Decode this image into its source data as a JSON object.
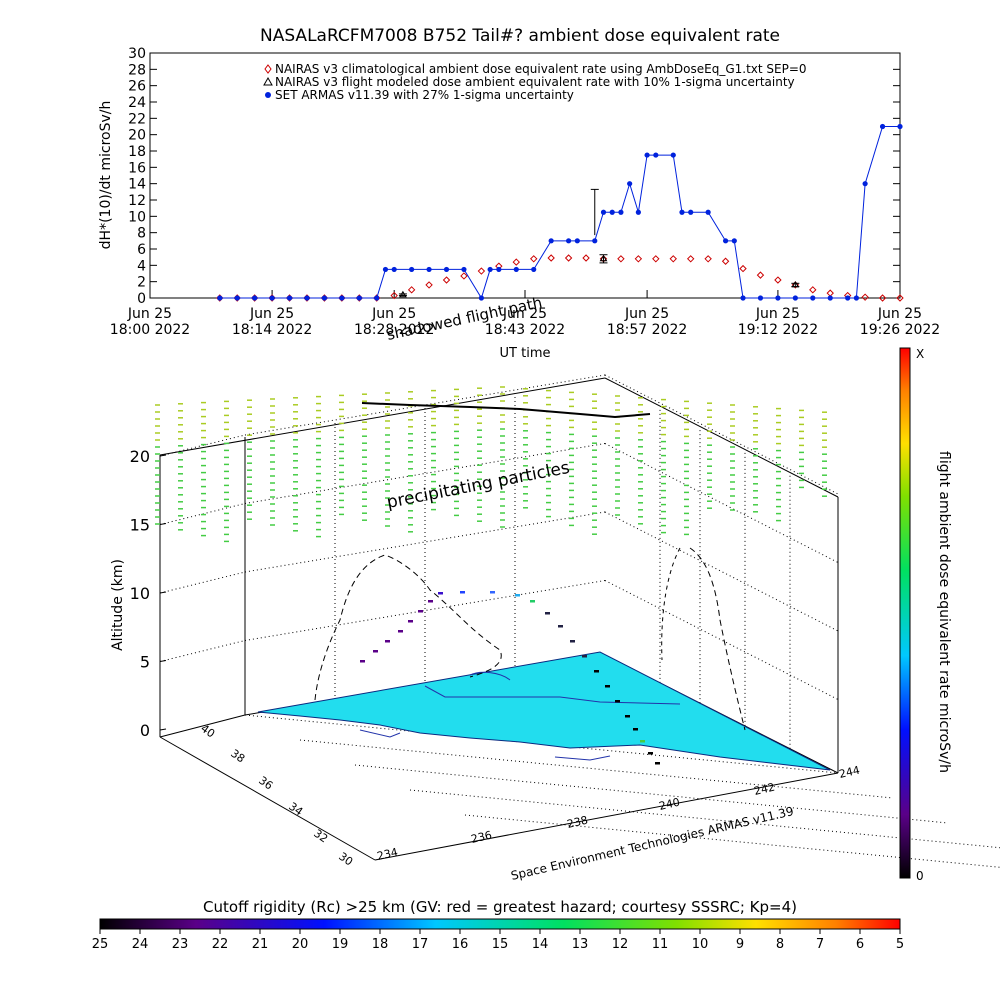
{
  "chart_data": [
    {
      "type": "line",
      "title": "NASALaRCFM7008  B752 Tail#? ambient dose equivalent rate",
      "ylabel": "dH*(10)/dt microSv/h",
      "xlabel": "UT time",
      "ylim": [
        0,
        30
      ],
      "yticks": [
        "0",
        "2",
        "4",
        "6",
        "8",
        "10",
        "12",
        "14",
        "16",
        "18",
        "20",
        "22",
        "24",
        "26",
        "28",
        "30"
      ],
      "xlim": [
        "18:00",
        "19:26"
      ],
      "xticks": [
        {
          "date": "Jun 25",
          "time": "18:00 2022",
          "t": "18:00"
        },
        {
          "date": "Jun 25",
          "time": "18:14 2022",
          "t": "18:14"
        },
        {
          "date": "Jun 25",
          "time": "18:28 2022",
          "t": "18:28"
        },
        {
          "date": "Jun 25",
          "time": "18:43 2022",
          "t": "18:43"
        },
        {
          "date": "Jun 25",
          "time": "18:57 2022",
          "t": "18:57"
        },
        {
          "date": "Jun 25",
          "time": "19:12 2022",
          "t": "19:12"
        },
        {
          "date": "Jun 25",
          "time": "19:26 2022",
          "t": "19:26"
        }
      ],
      "legend": [
        {
          "marker": "diamond",
          "color": "#cc0000",
          "label": "NAIRAS v3 climatological ambient dose equivalent rate using AmbDoseEq_G1.txt SEP=0"
        },
        {
          "marker": "triangle",
          "color": "#000000",
          "label": "NAIRAS v3 flight modeled dose ambient equivalent rate with 10% 1-sigma uncertainty"
        },
        {
          "marker": "dot",
          "color": "#0022dd",
          "label": "SET ARMAS v11.39 with 27% 1-sigma uncertainty"
        }
      ],
      "series": [
        {
          "marker": "diamond",
          "color": "#cc0000",
          "x": [
            "18:08",
            "18:10",
            "18:12",
            "18:14",
            "18:16",
            "18:18",
            "18:20",
            "18:22",
            "18:24",
            "18:26",
            "18:28",
            "18:30",
            "18:32",
            "18:34",
            "18:36",
            "18:38",
            "18:40",
            "18:42",
            "18:44",
            "18:46",
            "18:48",
            "18:50",
            "18:52",
            "18:54",
            "18:56",
            "18:58",
            "19:00",
            "19:02",
            "19:04",
            "19:06",
            "19:08",
            "19:10",
            "19:12",
            "19:14",
            "19:16",
            "19:18",
            "19:20",
            "19:22",
            "19:24",
            "19:26"
          ],
          "y": [
            0,
            0,
            0,
            0,
            0,
            0,
            0,
            0,
            0,
            0,
            0.3,
            1.0,
            1.6,
            2.2,
            2.7,
            3.3,
            3.9,
            4.4,
            4.8,
            4.9,
            4.9,
            4.9,
            4.8,
            4.8,
            4.8,
            4.8,
            4.8,
            4.8,
            4.8,
            4.5,
            3.6,
            2.8,
            2.2,
            1.6,
            1.0,
            0.6,
            0.3,
            0.1,
            0,
            0
          ]
        },
        {
          "marker": "triangle",
          "color": "#000000",
          "x": [
            "18:29",
            "18:52",
            "19:14"
          ],
          "y": [
            0.4,
            4.8,
            1.6
          ],
          "err": [
            0.1,
            0.5,
            0.2
          ]
        },
        {
          "marker": "dot",
          "color": "#0022dd",
          "x": [
            "18:08",
            "18:10",
            "18:12",
            "18:14",
            "18:16",
            "18:18",
            "18:20",
            "18:22",
            "18:24",
            "18:26",
            "18:27",
            "18:28",
            "18:30",
            "18:32",
            "18:34",
            "18:36",
            "18:38",
            "18:39",
            "18:40",
            "18:42",
            "18:44",
            "18:46",
            "18:48",
            "18:49",
            "18:51",
            "18:52",
            "18:53",
            "18:54",
            "18:55",
            "18:56",
            "18:57",
            "18:58",
            "19:00",
            "19:01",
            "19:02",
            "19:04",
            "19:06",
            "19:07",
            "19:08",
            "19:10",
            "19:12",
            "19:14",
            "19:16",
            "19:18",
            "19:20",
            "19:21",
            "19:22",
            "19:24",
            "19:26"
          ],
          "y": [
            0,
            0,
            0,
            0,
            0,
            0,
            0,
            0,
            0,
            0,
            3.5,
            3.5,
            3.5,
            3.5,
            3.5,
            3.5,
            0,
            3.5,
            3.5,
            3.5,
            3.5,
            7,
            7,
            7,
            7,
            10.5,
            10.5,
            10.5,
            14,
            10.5,
            17.5,
            17.5,
            17.5,
            10.5,
            10.5,
            10.5,
            7,
            7,
            0,
            0,
            0,
            0,
            0,
            0,
            0,
            0,
            14,
            21,
            21
          ],
          "err_at": {
            "x": "18:51",
            "y": 10.5,
            "err": 2.8
          }
        }
      ]
    },
    {
      "type": "scatter",
      "subtype": "3d-flight-path",
      "zlabel": "Altitude (km)",
      "zticks": [
        "0",
        "5",
        "10",
        "15",
        "20"
      ],
      "latticks": [
        "30",
        "32",
        "34",
        "36",
        "38",
        "40"
      ],
      "lonticks": [
        "234",
        "236",
        "238",
        "240",
        "242",
        "244"
      ],
      "annotations": [
        "shadowed flight path",
        "precipitating particles"
      ],
      "credit": "Space Environment Technologies ARMAS v11.39",
      "colorbar_label": "flight ambient dose equivalent rate microSv/h",
      "colorbar_ticks": [
        "0",
        "X"
      ],
      "rigidity_label": "Cutoff rigidity (Rc) >25 km (GV: red = greatest hazard; courtesy SSSRC; Kp=4)",
      "rigidity_ticks": [
        "25",
        "24",
        "23",
        "22",
        "21",
        "20",
        "19",
        "18",
        "17",
        "16",
        "15",
        "14",
        "13",
        "12",
        "11",
        "10",
        "9",
        "8",
        "7",
        "6",
        "5"
      ]
    }
  ],
  "colors": {
    "armas": "#0022dd",
    "nairas_clim": "#cc0000",
    "surface": "#22ddee",
    "particles": "#88cc22"
  }
}
